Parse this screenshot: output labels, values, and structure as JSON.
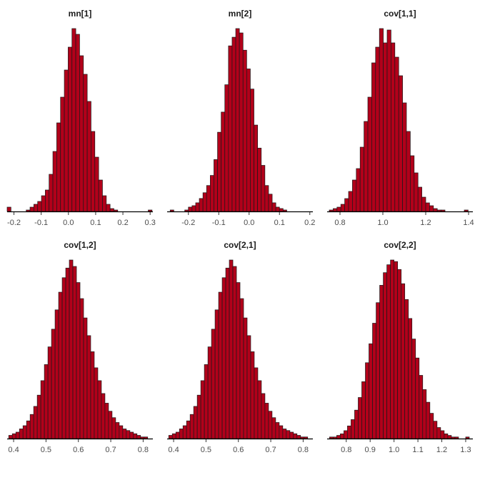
{
  "chart_data": [
    {
      "type": "bar",
      "title": "mn[1]",
      "xlim": [
        -0.225,
        0.31
      ],
      "ticks": [
        -0.2,
        -0.1,
        0.0,
        0.1,
        0.2,
        0.3
      ],
      "tick_labels": [
        "-0.2",
        "-0.1",
        "0.0",
        "0.1",
        "0.2",
        "0.3"
      ],
      "bin_edges": [
        -0.225,
        -0.211,
        -0.197,
        -0.183,
        -0.169,
        -0.155,
        -0.141,
        -0.127,
        -0.113,
        -0.099,
        -0.085,
        -0.071,
        -0.057,
        -0.043,
        -0.029,
        -0.015,
        -0.001,
        0.013,
        0.027,
        0.041,
        0.055,
        0.069,
        0.083,
        0.097,
        0.111,
        0.125,
        0.139,
        0.153,
        0.167,
        0.181,
        0.195,
        0.209,
        0.223,
        0.237,
        0.251,
        0.265,
        0.279,
        0.293,
        0.307
      ],
      "counts": [
        3,
        0,
        0,
        0,
        0,
        1,
        3,
        5,
        7,
        11,
        15,
        26,
        42,
        62,
        80,
        99,
        115,
        128,
        124,
        109,
        96,
        77,
        56,
        38,
        22,
        11,
        5,
        2,
        1,
        0,
        0,
        0,
        0,
        0,
        0,
        0,
        0,
        1
      ]
    },
    {
      "type": "bar",
      "title": "mn[2]",
      "xlim": [
        -0.27,
        0.21
      ],
      "ticks": [
        -0.2,
        -0.1,
        0.0,
        0.1,
        0.2
      ],
      "tick_labels": [
        "-0.2",
        "-0.1",
        "0.0",
        "0.1",
        "0.2"
      ],
      "bin_edges": [
        -0.26,
        -0.248,
        -0.236,
        -0.224,
        -0.212,
        -0.2,
        -0.188,
        -0.176,
        -0.164,
        -0.152,
        -0.14,
        -0.128,
        -0.116,
        -0.104,
        -0.092,
        -0.08,
        -0.068,
        -0.056,
        -0.044,
        -0.032,
        -0.02,
        -0.008,
        0.004,
        0.016,
        0.028,
        0.04,
        0.052,
        0.064,
        0.076,
        0.088,
        0.1,
        0.112,
        0.124,
        0.136,
        0.148,
        0.16,
        0.172,
        0.184,
        0.196,
        0.208
      ],
      "counts": [
        1,
        0,
        0,
        0,
        1,
        3,
        4,
        6,
        9,
        13,
        18,
        25,
        36,
        55,
        69,
        88,
        115,
        121,
        127,
        124,
        112,
        99,
        85,
        60,
        44,
        32,
        18,
        12,
        6,
        3,
        2,
        1,
        0,
        0,
        0,
        0,
        0,
        0,
        0
      ]
    },
    {
      "type": "bar",
      "title": "cov[1,1]",
      "xlim": [
        0.74,
        1.42
      ],
      "ticks": [
        0.8,
        1.0,
        1.2,
        1.4
      ],
      "tick_labels": [
        "0.8",
        "1.0",
        "1.2",
        "1.4"
      ],
      "bin_edges": [
        0.75,
        0.768,
        0.786,
        0.804,
        0.822,
        0.84,
        0.858,
        0.876,
        0.894,
        0.912,
        0.93,
        0.948,
        0.966,
        0.984,
        1.002,
        1.02,
        1.038,
        1.056,
        1.074,
        1.092,
        1.11,
        1.128,
        1.146,
        1.164,
        1.182,
        1.2,
        1.218,
        1.236,
        1.254,
        1.272,
        1.29,
        1.308,
        1.326,
        1.344,
        1.362,
        1.38,
        1.398
      ],
      "counts": [
        1,
        2,
        3,
        5,
        9,
        14,
        22,
        30,
        45,
        63,
        80,
        104,
        115,
        128,
        118,
        127,
        118,
        108,
        95,
        76,
        56,
        39,
        27,
        17,
        10,
        6,
        4,
        2,
        1,
        1,
        0,
        0,
        0,
        0,
        0,
        1
      ]
    },
    {
      "type": "bar",
      "title": "cov[1,2]",
      "xlim": [
        0.38,
        0.83
      ],
      "ticks": [
        0.4,
        0.5,
        0.6,
        0.7,
        0.8
      ],
      "tick_labels": [
        "0.4",
        "0.5",
        "0.6",
        "0.7",
        "0.8"
      ],
      "bin_edges": [
        0.385,
        0.396,
        0.407,
        0.418,
        0.429,
        0.44,
        0.451,
        0.462,
        0.473,
        0.484,
        0.495,
        0.506,
        0.517,
        0.528,
        0.539,
        0.55,
        0.561,
        0.572,
        0.583,
        0.594,
        0.605,
        0.616,
        0.627,
        0.638,
        0.649,
        0.66,
        0.671,
        0.682,
        0.693,
        0.704,
        0.715,
        0.726,
        0.737,
        0.748,
        0.759,
        0.77,
        0.781,
        0.792,
        0.803,
        0.814,
        0.825
      ],
      "counts": [
        2,
        3,
        4,
        6,
        8,
        11,
        15,
        20,
        27,
        36,
        46,
        57,
        68,
        80,
        91,
        100,
        106,
        111,
        107,
        97,
        87,
        75,
        64,
        54,
        44,
        36,
        28,
        22,
        17,
        13,
        10,
        8,
        6,
        5,
        4,
        3,
        2,
        1,
        1,
        0
      ]
    },
    {
      "type": "bar",
      "title": "cov[2,1]",
      "xlim": [
        0.38,
        0.83
      ],
      "ticks": [
        0.4,
        0.5,
        0.6,
        0.7,
        0.8
      ],
      "tick_labels": [
        "0.4",
        "0.5",
        "0.6",
        "0.7",
        "0.8"
      ],
      "bin_edges": [
        0.385,
        0.396,
        0.407,
        0.418,
        0.429,
        0.44,
        0.451,
        0.462,
        0.473,
        0.484,
        0.495,
        0.506,
        0.517,
        0.528,
        0.539,
        0.55,
        0.561,
        0.572,
        0.583,
        0.594,
        0.605,
        0.616,
        0.627,
        0.638,
        0.649,
        0.66,
        0.671,
        0.682,
        0.693,
        0.704,
        0.715,
        0.726,
        0.737,
        0.748,
        0.759,
        0.77,
        0.781,
        0.792,
        0.803,
        0.814,
        0.825
      ],
      "counts": [
        2,
        3,
        4,
        6,
        8,
        11,
        15,
        20,
        27,
        36,
        46,
        57,
        68,
        80,
        91,
        100,
        106,
        111,
        107,
        97,
        87,
        75,
        64,
        54,
        44,
        36,
        28,
        22,
        17,
        13,
        10,
        8,
        6,
        5,
        4,
        3,
        2,
        1,
        1,
        0
      ]
    },
    {
      "type": "bar",
      "title": "cov[2,2]",
      "xlim": [
        0.72,
        1.33
      ],
      "ticks": [
        0.8,
        0.9,
        1.0,
        1.1,
        1.2,
        1.3
      ],
      "tick_labels": [
        "0.8",
        "0.9",
        "1.0",
        "1.1",
        "1.2",
        "1.3"
      ],
      "bin_edges": [
        0.73,
        0.745,
        0.76,
        0.775,
        0.79,
        0.805,
        0.82,
        0.835,
        0.85,
        0.865,
        0.88,
        0.895,
        0.91,
        0.925,
        0.94,
        0.955,
        0.97,
        0.985,
        1.0,
        1.015,
        1.03,
        1.045,
        1.06,
        1.075,
        1.09,
        1.105,
        1.12,
        1.135,
        1.15,
        1.165,
        1.18,
        1.195,
        1.21,
        1.225,
        1.24,
        1.255,
        1.27,
        1.285,
        1.3,
        1.315
      ],
      "counts": [
        1,
        1,
        2,
        3,
        5,
        8,
        12,
        18,
        26,
        36,
        48,
        60,
        73,
        86,
        97,
        105,
        110,
        113,
        112,
        107,
        98,
        88,
        76,
        63,
        51,
        40,
        31,
        23,
        16,
        11,
        7,
        5,
        3,
        2,
        1,
        1,
        0,
        0,
        1
      ]
    }
  ],
  "style": {
    "bar_fill": "#b2001a",
    "bar_stroke": "#1a1a1a",
    "axis_color": "#000000",
    "tick_label_color": "#4d4d4d"
  }
}
